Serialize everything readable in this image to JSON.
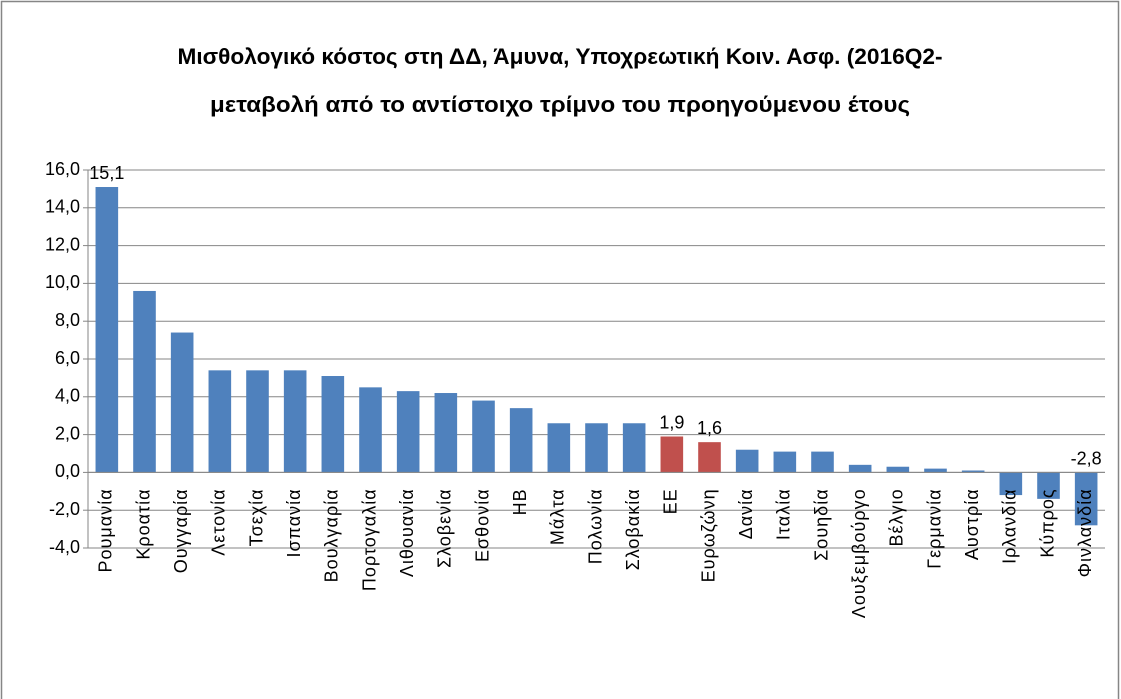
{
  "chart_data": {
    "type": "bar",
    "title": [
      "Μισθολογικό κόστος στη ΔΔ, Άμυνα, Υποχρεωτική Κοιν. Ασφ. (2016Q2-",
      "μεταβολή από το αντίστοιχο τρίμνο του προηγούμενου έτους"
    ],
    "categories": [
      "Ρουμανία",
      "Κροατία",
      "Ουγγαρία",
      "Λετονία",
      "Τσεχία",
      "Ισπανία",
      "Βουλγαρία",
      "Πορτογαλία",
      "Λιθουανία",
      "Σλοβενία",
      "Εσθονία",
      "ΗΒ",
      "Μάλτα",
      "Πολωνία",
      "Σλοβακία",
      "ΕΕ",
      "Ευρωζώνη",
      "Δανία",
      "Ιταλία",
      "Σουηδία",
      "Λουξεμβούργο",
      "Βέλγιο",
      "Γερμανία",
      "Αυστρία",
      "Ιρλανδία",
      "Κύπρος",
      "Φινλανδία"
    ],
    "values": [
      15.1,
      9.6,
      7.4,
      5.4,
      5.4,
      5.4,
      5.1,
      4.5,
      4.3,
      4.2,
      3.8,
      3.4,
      2.6,
      2.6,
      2.6,
      1.9,
      1.6,
      1.2,
      1.1,
      1.1,
      0.4,
      0.3,
      0.2,
      0.1,
      -1.2,
      -1.4,
      -2.8
    ],
    "value_labels": [
      "15,1",
      null,
      null,
      null,
      null,
      null,
      null,
      null,
      null,
      null,
      null,
      null,
      null,
      null,
      null,
      "1,9",
      "1,6",
      null,
      null,
      null,
      null,
      null,
      null,
      null,
      null,
      null,
      "-2,8"
    ],
    "colors": [
      "#4f81bd",
      "#4f81bd",
      "#4f81bd",
      "#4f81bd",
      "#4f81bd",
      "#4f81bd",
      "#4f81bd",
      "#4f81bd",
      "#4f81bd",
      "#4f81bd",
      "#4f81bd",
      "#4f81bd",
      "#4f81bd",
      "#4f81bd",
      "#4f81bd",
      "#c0504d",
      "#c0504d",
      "#4f81bd",
      "#4f81bd",
      "#4f81bd",
      "#4f81bd",
      "#4f81bd",
      "#4f81bd",
      "#4f81bd",
      "#4f81bd",
      "#4f81bd",
      "#4f81bd"
    ],
    "ylim": [
      -4,
      16
    ],
    "yticks": [
      {
        "value": -4,
        "label": "-4,0"
      },
      {
        "value": -2,
        "label": "-2,0"
      },
      {
        "value": 0,
        "label": "0,0"
      },
      {
        "value": 2,
        "label": "2,0"
      },
      {
        "value": 4,
        "label": "4,0"
      },
      {
        "value": 6,
        "label": "6,0"
      },
      {
        "value": 8,
        "label": "8,0"
      },
      {
        "value": 10,
        "label": "10,0"
      },
      {
        "value": 12,
        "label": "12,0"
      },
      {
        "value": 14,
        "label": "14,0"
      },
      {
        "value": 16,
        "label": "16,0"
      }
    ],
    "grid": true
  }
}
